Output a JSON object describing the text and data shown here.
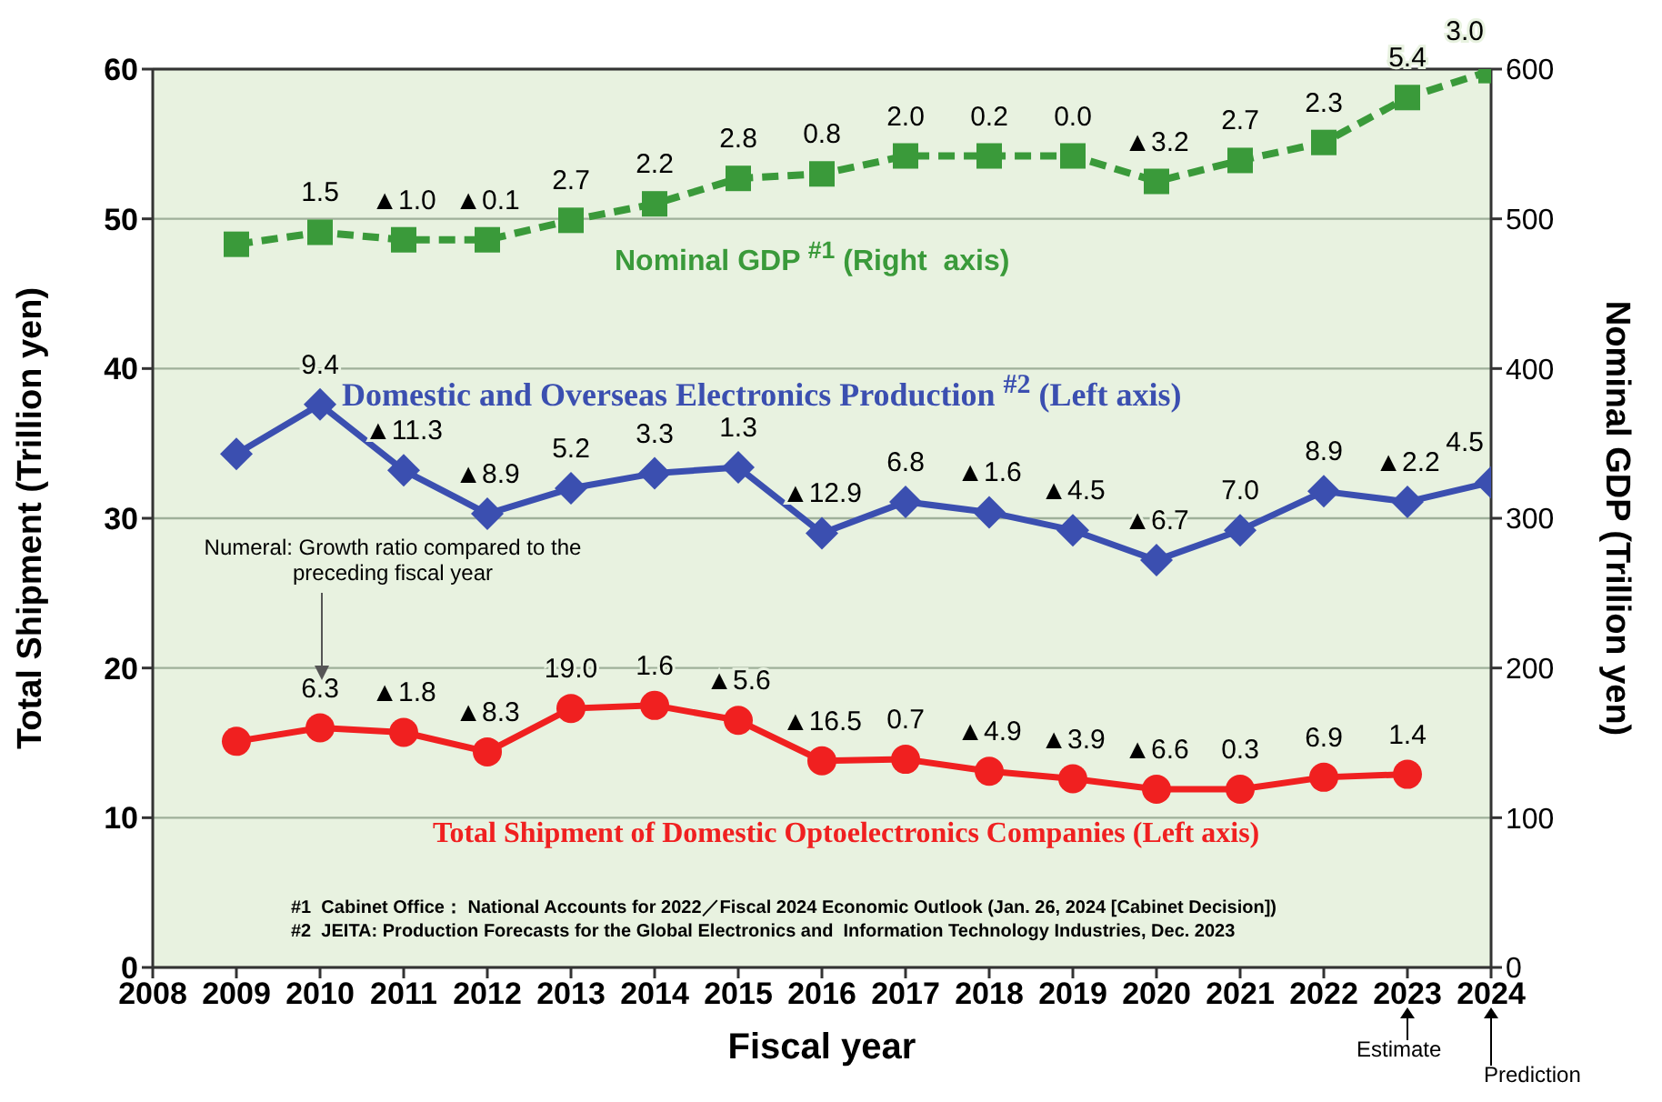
{
  "chart_data": {
    "type": "line",
    "xlabel": "Fiscal year",
    "ylabel": "Total Shipment (Trillion yen)",
    "y2label": "Nominal GDP (Trillion yen)",
    "x": [
      2009,
      2010,
      2011,
      2012,
      2013,
      2014,
      2015,
      2016,
      2017,
      2018,
      2019,
      2020,
      2021,
      2022,
      2023,
      2024
    ],
    "xlim": [
      2008,
      2024
    ],
    "xticks": [
      2008,
      2009,
      2010,
      2011,
      2012,
      2013,
      2014,
      2015,
      2016,
      2017,
      2018,
      2019,
      2020,
      2021,
      2022,
      2023,
      2024
    ],
    "ylim": [
      0,
      60
    ],
    "yticks": [
      0,
      10,
      20,
      30,
      40,
      50,
      60
    ],
    "y2lim": [
      0,
      600
    ],
    "y2ticks": [
      0,
      100,
      200,
      300,
      400,
      500,
      600
    ],
    "grid": "y",
    "series": [
      {
        "name": "Nominal GDP $^{#1}$ (Right  axis)",
        "color": "#3a9a3a",
        "axis": "y2",
        "marker": "square",
        "line_style": "dashed",
        "values": [
          483,
          491,
          486,
          486,
          499,
          510,
          527,
          530,
          542,
          542,
          542,
          525,
          539,
          551,
          581,
          599
        ]
      },
      {
        "name": "Domestic and Overseas Electronics Production $^{#2}$ (Left axis)",
        "color": "#3b4fb0",
        "marker": "diamond",
        "line_style": "solid",
        "values": [
          34.3,
          37.6,
          33.2,
          30.3,
          32.0,
          33.0,
          33.4,
          29.0,
          31.1,
          30.4,
          29.2,
          27.2,
          29.2,
          31.8,
          31.1,
          32.4
        ]
      },
      {
        "name": "Total Shipment of Domestic Optoelectronics Companies (Left axis)",
        "color": "#f02020",
        "marker": "circle",
        "line_style": "solid",
        "values": [
          15.1,
          16.0,
          15.7,
          14.4,
          17.3,
          17.5,
          16.5,
          13.8,
          13.9,
          13.1,
          12.6,
          11.9,
          11.9,
          12.7,
          12.9,
          null
        ]
      }
    ],
    "annotations": [
      "Numeral: Growth ratio compared to the preceding fiscal year",
      "#1  Cabinet Office： National Accounts for 2022／Fiscal 2024 Economic Outlook (Jan. 26, 2024 [Cabinet Decision])",
      "#2  JEITA: Production Forecasts for the Global Electronics and  Information Technology Industries, Dec. 2023",
      "Estimate",
      "Prediction",
      {
        "text": "1.5",
        "x": 2010,
        "y": 49.1
      },
      {
        "text": "▲1.0",
        "x": 2011,
        "y": 48.6
      },
      {
        "text": "▲0.1",
        "x": 2012,
        "y": 48.6
      },
      {
        "text": "2.7",
        "x": 2013,
        "y": 49.9
      },
      {
        "text": "2.2",
        "x": 2014,
        "y": 51.0
      },
      {
        "text": "2.8",
        "x": 2015,
        "y": 52.7
      },
      {
        "text": "0.8",
        "x": 2016,
        "y": 53.0
      },
      {
        "text": "2.0",
        "x": 2017,
        "y": 54.2
      },
      {
        "text": "0.2",
        "x": 2018,
        "y": 54.2
      },
      {
        "text": "0.0",
        "x": 2019,
        "y": 54.2
      },
      {
        "text": "▲3.2",
        "x": 2020,
        "y": 52.5
      },
      {
        "text": "2.7",
        "x": 2021,
        "y": 53.9
      },
      {
        "text": "2.3",
        "x": 2022,
        "y": 55.1
      },
      {
        "text": "5.4",
        "x": 2023,
        "y": 58.1
      },
      {
        "text": "3.0",
        "x": 2024,
        "y": 59.9
      },
      {
        "text": "9.4",
        "x": 2010,
        "y": 37.6
      },
      {
        "text": "▲11.3",
        "x": 2011,
        "y": 33.2
      },
      {
        "text": "▲8.9",
        "x": 2012,
        "y": 30.3
      },
      {
        "text": "5.2",
        "x": 2013,
        "y": 32.0
      },
      {
        "text": "3.3",
        "x": 2014,
        "y": 33.0
      },
      {
        "text": "1.3",
        "x": 2015,
        "y": 33.4
      },
      {
        "text": "▲12.9",
        "x": 2016,
        "y": 29.0
      },
      {
        "text": "6.8",
        "x": 2017,
        "y": 31.1
      },
      {
        "text": "▲1.6",
        "x": 2018,
        "y": 30.4
      },
      {
        "text": "▲4.5",
        "x": 2019,
        "y": 29.2
      },
      {
        "text": "▲6.7",
        "x": 2020,
        "y": 27.2
      },
      {
        "text": "7.0",
        "x": 2021,
        "y": 29.2
      },
      {
        "text": "8.9",
        "x": 2022,
        "y": 31.8
      },
      {
        "text": "▲2.2",
        "x": 2023,
        "y": 31.1
      },
      {
        "text": "4.5",
        "x": 2024,
        "y": 32.4
      },
      {
        "text": "6.3",
        "x": 2010,
        "y": 16.0
      },
      {
        "text": "▲1.8",
        "x": 2011,
        "y": 15.7
      },
      {
        "text": "▲8.3",
        "x": 2012,
        "y": 14.4
      },
      {
        "text": "19.0",
        "x": 2013,
        "y": 17.3
      },
      {
        "text": "1.6",
        "x": 2014,
        "y": 17.5
      },
      {
        "text": "▲5.6",
        "x": 2015,
        "y": 16.5
      },
      {
        "text": "▲16.5",
        "x": 2016,
        "y": 13.8
      },
      {
        "text": "0.7",
        "x": 2017,
        "y": 13.9
      },
      {
        "text": "▲4.9",
        "x": 2018,
        "y": 13.1
      },
      {
        "text": "▲3.9",
        "x": 2019,
        "y": 12.6
      },
      {
        "text": "▲6.6",
        "x": 2020,
        "y": 11.9
      },
      {
        "text": "0.3",
        "x": 2021,
        "y": 11.9
      },
      {
        "text": "6.9",
        "x": 2022,
        "y": 12.7
      },
      {
        "text": "1.4",
        "x": 2023,
        "y": 12.9
      }
    ]
  }
}
